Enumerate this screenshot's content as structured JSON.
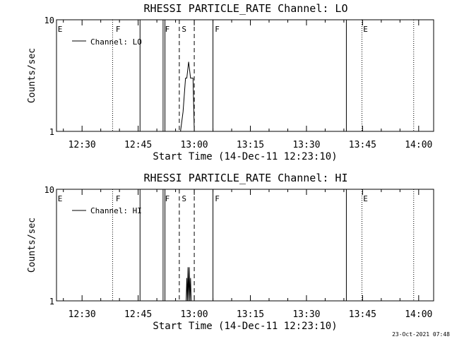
{
  "timestamp": "23-Oct-2021 07:48",
  "chart_data": [
    {
      "type": "line",
      "title": "RHESSI PARTICLE_RATE Channel: LO",
      "xlabel": "Start Time (14-Dec-11 12:23:10)",
      "ylabel": "Counts/sec",
      "yscale": "log",
      "ylim": [
        1,
        10
      ],
      "y_ticks": [
        "1",
        "10"
      ],
      "xlim": [
        "12:23:10",
        "14:04:00"
      ],
      "x_ticks": [
        "12:30",
        "12:45",
        "13:00",
        "13:15",
        "13:30",
        "13:45",
        "14:00"
      ],
      "legend": {
        "placement": "top-left",
        "entries": [
          "Channel: LO"
        ]
      },
      "series": [
        {
          "name": "Channel: LO",
          "x": [
            "12:56:20",
            "12:57:00",
            "12:57:40",
            "12:58:00",
            "12:58:30",
            "12:59:00",
            "12:59:40",
            "13:00:00"
          ],
          "y": [
            1,
            1.5,
            3,
            3,
            4.2,
            3,
            3,
            1
          ]
        }
      ],
      "vlines": [
        {
          "x": "12:38:10",
          "style": "dotted"
        },
        {
          "x": "12:45:30",
          "style": "solid"
        },
        {
          "x": "12:51:40",
          "style": "solid"
        },
        {
          "x": "12:52:10",
          "style": "solid"
        },
        {
          "x": "12:56:00",
          "style": "dashed"
        },
        {
          "x": "13:00:00",
          "style": "dashed"
        },
        {
          "x": "13:05:00",
          "style": "solid"
        },
        {
          "x": "13:40:40",
          "style": "solid"
        },
        {
          "x": "13:44:50",
          "style": "dotted"
        },
        {
          "x": "13:58:40",
          "style": "dotted"
        }
      ],
      "annotations": [
        {
          "text": "E",
          "x": "12:23:30"
        },
        {
          "text": "F",
          "x": "12:39:00"
        },
        {
          "text": "F",
          "x": "12:52:10"
        },
        {
          "text": "S",
          "x": "12:56:40"
        },
        {
          "text": "F",
          "x": "13:05:30"
        },
        {
          "text": "E",
          "x": "13:45:10"
        }
      ]
    },
    {
      "type": "line",
      "title": "RHESSI PARTICLE_RATE Channel: HI",
      "xlabel": "Start Time (14-Dec-11 12:23:10)",
      "ylabel": "Counts/sec",
      "yscale": "log",
      "ylim": [
        1,
        10
      ],
      "y_ticks": [
        "1",
        "10"
      ],
      "xlim": [
        "12:23:10",
        "14:04:00"
      ],
      "x_ticks": [
        "12:30",
        "12:45",
        "13:00",
        "13:15",
        "13:30",
        "13:45",
        "14:00"
      ],
      "legend": {
        "placement": "top-left",
        "entries": [
          "Channel: HI"
        ]
      },
      "series": [
        {
          "name": "Channel: HI",
          "x": [
            "12:57:50",
            "12:58:00",
            "12:58:10",
            "12:58:20",
            "12:58:30",
            "12:58:40",
            "12:58:50",
            "12:59:00",
            "12:59:10"
          ],
          "y": [
            1,
            1.6,
            1,
            2,
            1,
            2,
            1,
            1.6,
            1
          ]
        }
      ],
      "vlines": [
        {
          "x": "12:38:10",
          "style": "dotted"
        },
        {
          "x": "12:45:30",
          "style": "solid"
        },
        {
          "x": "12:51:40",
          "style": "solid"
        },
        {
          "x": "12:52:10",
          "style": "solid"
        },
        {
          "x": "12:56:00",
          "style": "dashed"
        },
        {
          "x": "13:00:00",
          "style": "dashed"
        },
        {
          "x": "13:05:00",
          "style": "solid"
        },
        {
          "x": "13:40:40",
          "style": "solid"
        },
        {
          "x": "13:44:50",
          "style": "dotted"
        },
        {
          "x": "13:58:40",
          "style": "dotted"
        }
      ],
      "annotations": [
        {
          "text": "E",
          "x": "12:23:30"
        },
        {
          "text": "F",
          "x": "12:39:00"
        },
        {
          "text": "F",
          "x": "12:52:10"
        },
        {
          "text": "S",
          "x": "12:56:40"
        },
        {
          "text": "F",
          "x": "13:05:30"
        },
        {
          "text": "E",
          "x": "13:45:10"
        }
      ]
    }
  ]
}
